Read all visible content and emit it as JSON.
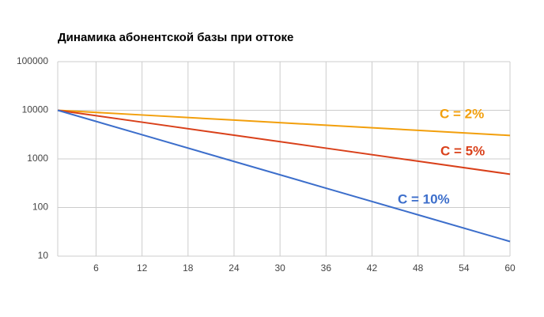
{
  "chart_data": {
    "type": "line",
    "title": "Динамика абонентской базы при оттоке",
    "x": [
      1,
      12,
      24,
      36,
      48,
      60
    ],
    "series": [
      {
        "name": "C = 2%",
        "color": "#f29f0c",
        "values": [
          10000,
          8007,
          6283,
          4931,
          3869,
          3036
        ]
      },
      {
        "name": "C = 5%",
        "color": "#d9401a",
        "values": [
          10000,
          5688,
          3074,
          1661,
          897,
          485
        ]
      },
      {
        "name": "C = 10%",
        "color": "#3c6ecb",
        "values": [
          10000,
          3138,
          886,
          250,
          70.7,
          20
        ]
      }
    ],
    "xlim": [
      1,
      60
    ],
    "xticks": [
      6,
      12,
      18,
      24,
      30,
      36,
      42,
      48,
      54,
      60
    ],
    "ylim": [
      10,
      100000
    ],
    "yticks": [
      10,
      100,
      1000,
      10000,
      100000
    ],
    "yscale": "log",
    "grid": true
  }
}
